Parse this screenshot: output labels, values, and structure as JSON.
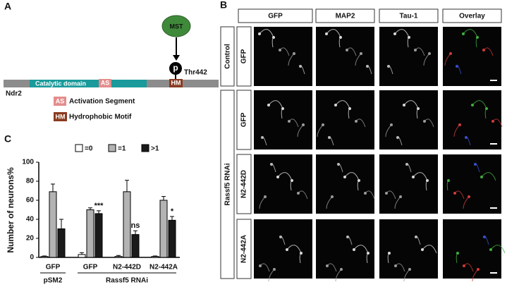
{
  "panel_labels": [
    "A",
    "B",
    "C"
  ],
  "diagram": {
    "kinase": "MST",
    "phospho": "p",
    "site": "Thr442",
    "domain": "Catalytic domain",
    "as": "AS",
    "hm": "HM",
    "protein": "Ndr2",
    "legend": [
      {
        "abbr": "AS",
        "text": "Activation Segment"
      },
      {
        "abbr": "HM",
        "text": "Hydrophobic Motif"
      }
    ]
  },
  "micrographs": {
    "columns": [
      "GFP",
      "MAP2",
      "Tau-1",
      "Overlay"
    ],
    "groups": [
      {
        "label": "Control",
        "rows": [
          "GFP"
        ]
      },
      {
        "label": "Rassf5 RNAi",
        "rows": [
          "GFP",
          "N2-442D",
          "N2-442A"
        ]
      }
    ]
  },
  "chart_data": {
    "type": "bar",
    "y_label": "Number of neurons%",
    "categories": [
      "GFP",
      "GFP",
      "N2-442D",
      "N2-442A"
    ],
    "groups": [
      "pSM2",
      "Rassf5 RNAi"
    ],
    "series": [
      {
        "name": "=0",
        "color": "#ffffff",
        "values": [
          1,
          3,
          1,
          1
        ],
        "errors": [
          0.5,
          2,
          1,
          0.5
        ]
      },
      {
        "name": "=1",
        "color": "#b3b3b3",
        "values": [
          69,
          50,
          69,
          60
        ],
        "errors": [
          8,
          2,
          12,
          4
        ]
      },
      {
        "name": ">1",
        "color": "#1a1a1a",
        "values": [
          30,
          46,
          24,
          39
        ],
        "errors": [
          10,
          3,
          4,
          4
        ],
        "annotations": [
          null,
          "***",
          "ns",
          "*"
        ]
      }
    ],
    "ylim": [
      0,
      100
    ],
    "yticks": [
      0,
      20,
      40,
      60,
      80,
      100
    ],
    "grid": false
  }
}
